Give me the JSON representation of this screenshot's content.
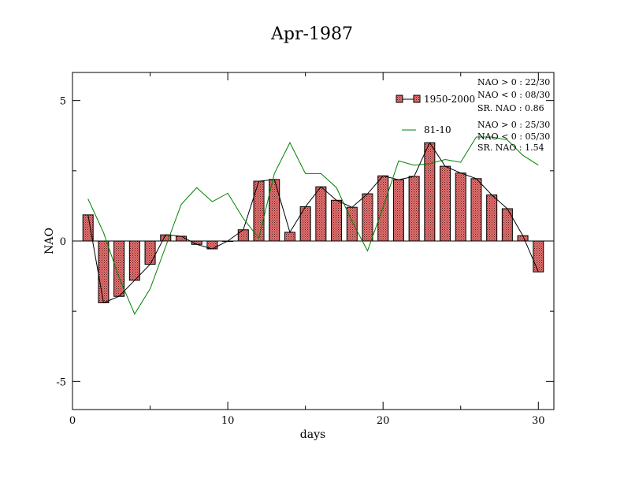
{
  "chart_data": {
    "type": "bar",
    "title": "Apr-1987",
    "xlabel": "days",
    "ylabel": "NAO",
    "xlim": [
      0,
      31
    ],
    "ylim": [
      -6,
      6
    ],
    "x_ticks": [
      0,
      10,
      20,
      30
    ],
    "y_ticks": [
      -5,
      0,
      5
    ],
    "x_tick_labels": [
      "0",
      "10",
      "20",
      "30"
    ],
    "y_tick_labels": [
      "-5",
      "0",
      "5"
    ],
    "x": [
      1,
      2,
      3,
      4,
      5,
      6,
      7,
      8,
      9,
      10,
      11,
      12,
      13,
      14,
      15,
      16,
      17,
      18,
      19,
      20,
      21,
      22,
      23,
      24,
      25,
      26,
      27,
      28,
      29,
      30
    ],
    "series": [
      {
        "name": "1950-2000",
        "kind": "bar",
        "color": "#e07070",
        "values": [
          0.93,
          -2.2,
          -1.97,
          -1.4,
          -0.83,
          0.22,
          0.17,
          -0.12,
          -0.28,
          0.0,
          0.4,
          2.13,
          2.19,
          0.31,
          1.22,
          1.93,
          1.45,
          1.2,
          1.68,
          2.32,
          2.18,
          2.3,
          3.5,
          2.66,
          2.42,
          2.22,
          1.64,
          1.15,
          0.19,
          -1.1
        ]
      },
      {
        "name": "81-10",
        "kind": "line",
        "color": "#008000",
        "values": [
          1.5,
          0.3,
          -1.3,
          -2.6,
          -1.7,
          -0.2,
          1.3,
          1.9,
          1.4,
          1.7,
          0.8,
          0.1,
          2.4,
          3.5,
          2.4,
          2.4,
          1.9,
          0.7,
          -0.35,
          1.2,
          2.85,
          2.7,
          2.75,
          2.9,
          2.8,
          3.7,
          3.7,
          3.6,
          3.05,
          2.7
        ]
      }
    ],
    "stats": [
      [
        "NAO > 0 : 22/30",
        "NAO < 0 : 08/30",
        "SR. NAO :  0.86"
      ],
      [
        "NAO > 0 : 25/30",
        "NAO < 0 : 05/30",
        "SR. NAO :  1.54"
      ]
    ],
    "legend_position": "top-right",
    "grid": false
  }
}
